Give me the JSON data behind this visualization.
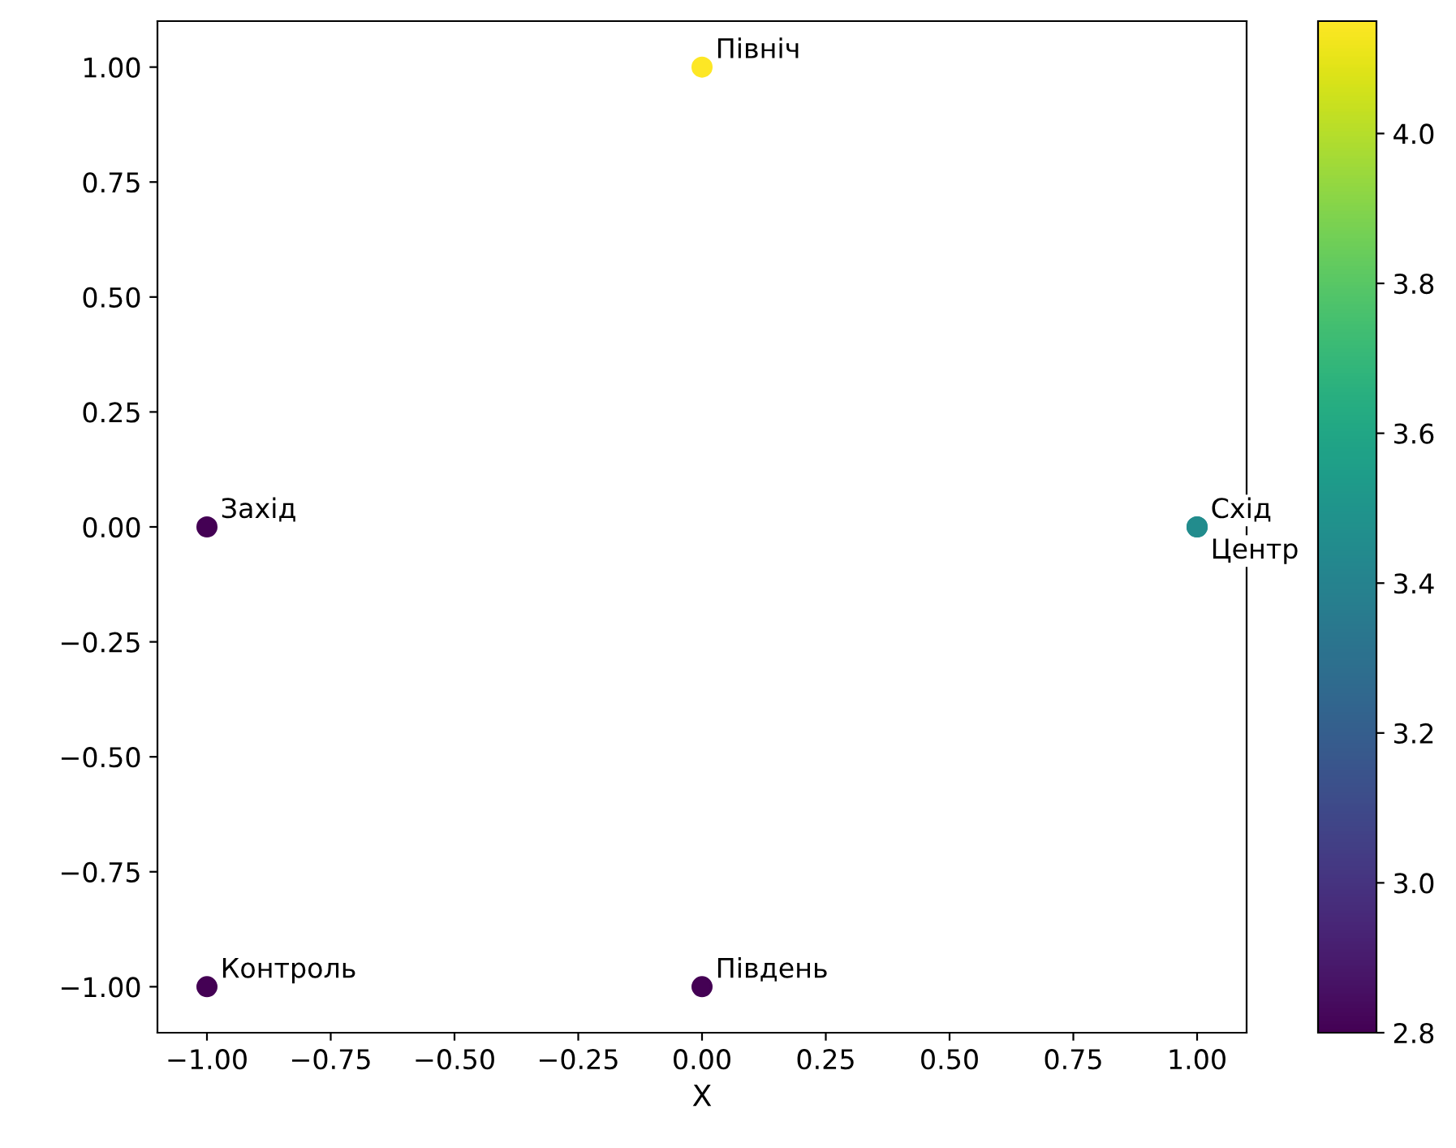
{
  "chart_data": {
    "type": "scatter",
    "xlabel": "X",
    "x": [
      0,
      -1,
      1,
      1,
      -1,
      0
    ],
    "values": [
      1,
      0,
      0,
      0,
      -1,
      -1
    ],
    "cvalues": [
      4.15,
      2.8,
      3.45,
      3.45,
      2.8,
      2.8
    ],
    "annotations": [
      {
        "text": "Північ",
        "x": 0,
        "y": 1
      },
      {
        "text": "Захід",
        "x": -1,
        "y": 0
      },
      {
        "text": "Схід",
        "x": 1,
        "y": 0
      },
      {
        "text": "Центр",
        "x": 1,
        "y": 0
      },
      {
        "text": "Контроль",
        "x": -1,
        "y": -1
      },
      {
        "text": "Південь",
        "x": 0,
        "y": -1
      }
    ],
    "xlim": [
      -1.1,
      1.1
    ],
    "ylim": [
      -1.1,
      1.1
    ],
    "xticks": [
      {
        "value": -1,
        "label": "−1.00"
      },
      {
        "value": -0.75,
        "label": "−0.75"
      },
      {
        "value": -0.5,
        "label": "−0.50"
      },
      {
        "value": -0.25,
        "label": "−0.25"
      },
      {
        "value": 0,
        "label": "0.00"
      },
      {
        "value": 0.25,
        "label": "0.25"
      },
      {
        "value": 0.5,
        "label": "0.50"
      },
      {
        "value": 0.75,
        "label": "0.75"
      },
      {
        "value": 1,
        "label": "1.00"
      }
    ],
    "yticks": [
      {
        "value": -1,
        "label": "−1.00"
      },
      {
        "value": -0.75,
        "label": "−0.75"
      },
      {
        "value": -0.5,
        "label": "−0.50"
      },
      {
        "value": -0.25,
        "label": "−0.25"
      },
      {
        "value": 0,
        "label": "0.00"
      },
      {
        "value": 0.25,
        "label": "0.25"
      },
      {
        "value": 0.5,
        "label": "0.50"
      },
      {
        "value": 0.75,
        "label": "0.75"
      },
      {
        "value": 1,
        "label": "1.00"
      }
    ],
    "clim": [
      2.8,
      4.15
    ],
    "cticks": [
      2.8,
      {
        "value": 3,
        "label": "3.0"
      },
      3.2,
      3.4,
      3.6,
      3.8,
      {
        "value": 4,
        "label": "4.0"
      }
    ],
    "marker": "circle",
    "grid": false,
    "legend": false
  }
}
